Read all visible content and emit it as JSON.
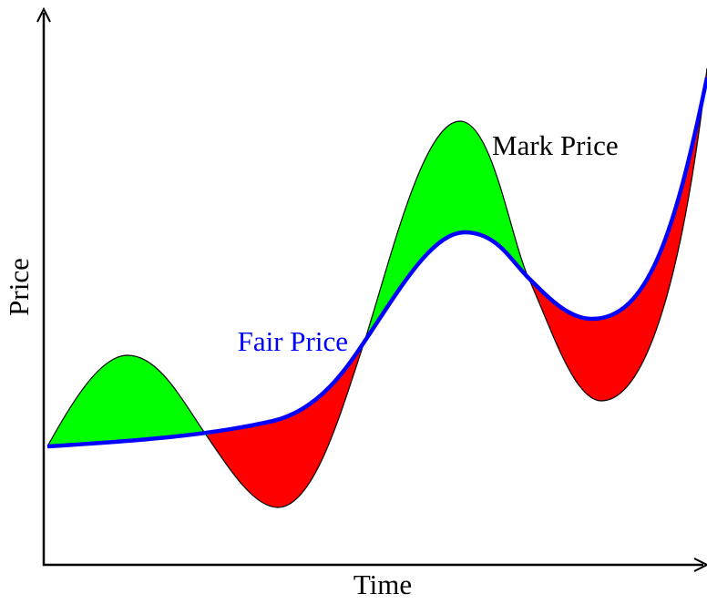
{
  "labels": {
    "mark_price": "Mark Price",
    "fair_price": "Fair Price"
  },
  "axes": {
    "y_label": "Price",
    "x_label": "Time"
  }
}
